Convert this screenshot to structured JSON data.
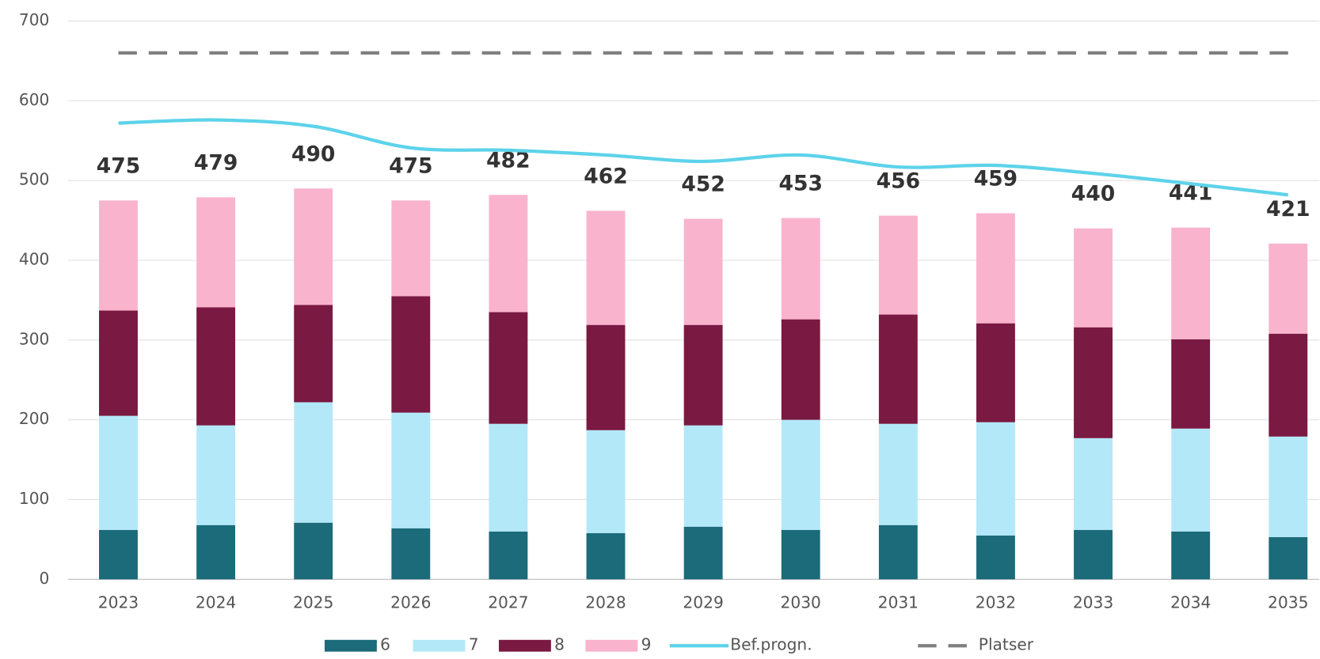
{
  "chart_data": {
    "type": "stacked-bar-line",
    "categories": [
      "2023",
      "2024",
      "2025",
      "2026",
      "2027",
      "2028",
      "2029",
      "2030",
      "2031",
      "2032",
      "2033",
      "2034",
      "2035"
    ],
    "series": [
      {
        "name": "6",
        "color": "#1b6b7a",
        "values": [
          62,
          68,
          71,
          64,
          60,
          58,
          66,
          62,
          68,
          55,
          62,
          60,
          53
        ]
      },
      {
        "name": "7",
        "color": "#b3e8f8",
        "values": [
          143,
          125,
          151,
          145,
          135,
          129,
          127,
          138,
          127,
          142,
          115,
          129,
          126
        ]
      },
      {
        "name": "8",
        "color": "#7a1942",
        "values": [
          132,
          148,
          122,
          146,
          140,
          132,
          126,
          126,
          137,
          124,
          139,
          112,
          129
        ]
      },
      {
        "name": "9",
        "color": "#f9b3cd",
        "values": [
          138,
          138,
          146,
          120,
          147,
          143,
          133,
          127,
          124,
          138,
          124,
          140,
          113
        ]
      }
    ],
    "totals": [
      475,
      479,
      490,
      475,
      482,
      462,
      452,
      453,
      456,
      459,
      440,
      441,
      421
    ],
    "lines": [
      {
        "name": "Bef.progn.",
        "color": "#5dd3ea",
        "dashed": false,
        "values": [
          572,
          576,
          568,
          541,
          538,
          532,
          524,
          532,
          517,
          519,
          509,
          496,
          482
        ]
      },
      {
        "name": "Platser",
        "color": "#808080",
        "dashed": true,
        "values": [
          660,
          660,
          660,
          660,
          660,
          660,
          660,
          660,
          660,
          660,
          660,
          660,
          660
        ]
      }
    ],
    "ylim": [
      0,
      700
    ],
    "yticks": [
      0,
      100,
      200,
      300,
      400,
      500,
      600,
      700
    ],
    "grid": true
  }
}
